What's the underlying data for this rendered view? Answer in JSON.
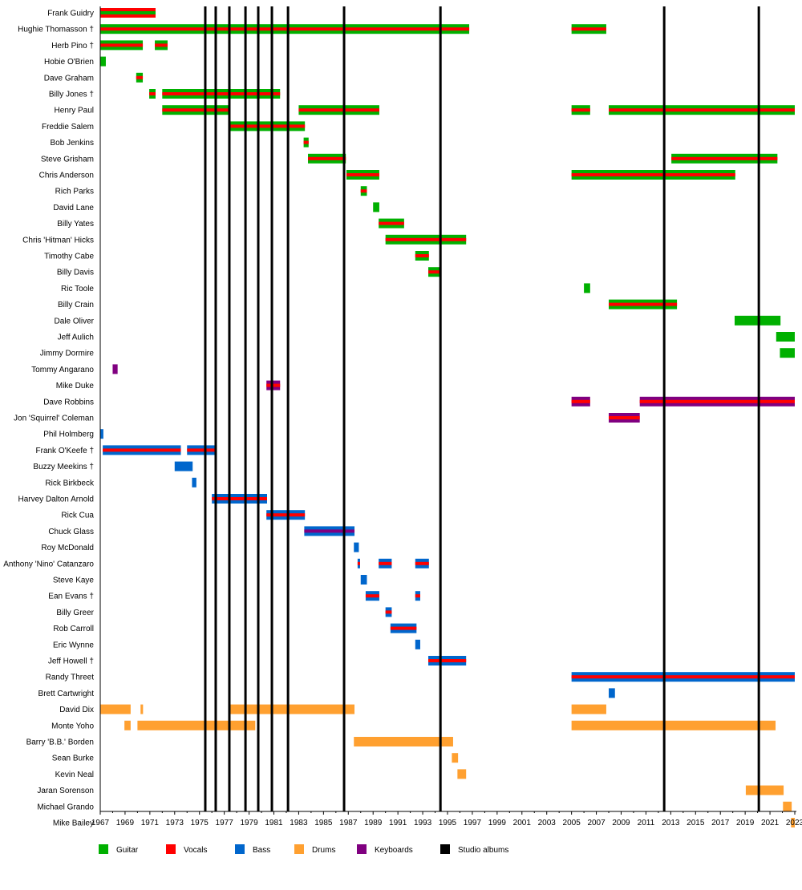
{
  "chart_data": {
    "type": "timeline",
    "xlim": [
      1967,
      2023
    ],
    "x_ticks": [
      1967,
      1969,
      1971,
      1973,
      1975,
      1977,
      1979,
      1981,
      1983,
      1985,
      1987,
      1989,
      1991,
      1993,
      1995,
      1997,
      1999,
      2001,
      2003,
      2005,
      2007,
      2009,
      2011,
      2013,
      2015,
      2017,
      2019,
      2021,
      2023
    ],
    "colors": {
      "Guitar": "#00b000",
      "Vocals": "#ff0000",
      "Bass": "#0066cc",
      "Drums": "#ffa030",
      "Keyboards": "#800080",
      "Studio albums": "#000000"
    },
    "legend": [
      "Guitar",
      "Vocals",
      "Bass",
      "Drums",
      "Keyboards",
      "Studio albums"
    ],
    "legend_placement": "bottom",
    "studio_albums": [
      1975.47,
      1976.31,
      1977.41,
      1978.71,
      1979.74,
      1980.84,
      1982.14,
      1986.66,
      1994.43,
      2012.47,
      2020.1
    ],
    "members": [
      {
        "name": "Frank Guidry",
        "role": "Vocals",
        "secondary": "Guitar",
        "periods": [
          [
            1967,
            1971.46
          ]
        ]
      },
      {
        "name": "Hughie Thomasson †",
        "role": "Guitar",
        "secondary": "Vocals",
        "periods": [
          [
            1967,
            1996.75
          ],
          [
            2005,
            2007.8
          ]
        ]
      },
      {
        "name": "Herb Pino †",
        "role": "Guitar",
        "secondary": "Vocals",
        "periods": [
          [
            1967,
            1970.43
          ],
          [
            1971.4,
            1972.43
          ]
        ]
      },
      {
        "name": "Hobie O'Brien",
        "role": "Guitar",
        "periods": [
          [
            1967,
            1967.45
          ]
        ]
      },
      {
        "name": "Dave Graham",
        "role": "Guitar",
        "secondary": "Vocals",
        "periods": [
          [
            1969.9,
            1970.43
          ]
        ]
      },
      {
        "name": "Billy Jones †",
        "role": "Guitar",
        "secondary": "Vocals",
        "periods": [
          [
            1970.95,
            1971.46
          ],
          [
            1972,
            1981.5
          ]
        ]
      },
      {
        "name": "Henry Paul",
        "role": "Guitar",
        "secondary": "Vocals",
        "periods": [
          [
            1972,
            1977.4
          ],
          [
            1983,
            1989.5
          ],
          [
            2005,
            2006.5
          ],
          [
            2008,
            2023
          ]
        ]
      },
      {
        "name": "Freddie Salem",
        "role": "Guitar",
        "secondary": "Vocals",
        "periods": [
          [
            1977.4,
            1983.5
          ]
        ]
      },
      {
        "name": "Bob Jenkins",
        "role": "Guitar",
        "secondary": "Vocals",
        "periods": [
          [
            1983.4,
            1983.8
          ]
        ]
      },
      {
        "name": "Steve Grisham",
        "role": "Guitar",
        "secondary": "Vocals",
        "periods": [
          [
            1983.75,
            1986.8
          ],
          [
            2013.05,
            2021.6
          ]
        ]
      },
      {
        "name": "Chris Anderson",
        "role": "Guitar",
        "secondary": "Vocals",
        "periods": [
          [
            1986.85,
            1989.5
          ],
          [
            2005,
            2018.2
          ]
        ]
      },
      {
        "name": "Rich Parks",
        "role": "Guitar",
        "secondary": "Vocals",
        "periods": [
          [
            1988,
            1988.5
          ]
        ]
      },
      {
        "name": "David Lane",
        "role": "Guitar",
        "periods": [
          [
            1989,
            1989.5
          ]
        ]
      },
      {
        "name": "Billy Yates",
        "role": "Guitar",
        "secondary": "Vocals",
        "periods": [
          [
            1989.45,
            1991.5
          ]
        ]
      },
      {
        "name": "Chris 'Hitman' Hicks",
        "role": "Guitar",
        "secondary": "Vocals",
        "periods": [
          [
            1990,
            1996.5
          ]
        ]
      },
      {
        "name": "Timothy Cabe",
        "role": "Guitar",
        "secondary": "Vocals",
        "periods": [
          [
            1992.4,
            1993.5
          ]
        ]
      },
      {
        "name": "Billy Davis",
        "role": "Guitar",
        "secondary": "Vocals",
        "periods": [
          [
            1993.45,
            1994.5
          ]
        ]
      },
      {
        "name": "Ric Toole",
        "role": "Guitar",
        "periods": [
          [
            2006,
            2006.5
          ]
        ]
      },
      {
        "name": "Billy Crain",
        "role": "Guitar",
        "secondary": "Vocals",
        "periods": [
          [
            2008,
            2013.5
          ]
        ]
      },
      {
        "name": "Dale Oliver",
        "role": "Guitar",
        "periods": [
          [
            2018.15,
            2021.85
          ]
        ]
      },
      {
        "name": "Jeff Aulich",
        "role": "Guitar",
        "periods": [
          [
            2021.5,
            2023
          ]
        ]
      },
      {
        "name": "Jimmy Dormire",
        "role": "Guitar",
        "periods": [
          [
            2021.8,
            2023
          ]
        ]
      },
      {
        "name": "Tommy Angarano",
        "role": "Keyboards",
        "periods": [
          [
            1968,
            1968.4
          ]
        ]
      },
      {
        "name": "Mike Duke",
        "role": "Keyboards",
        "secondary": "Vocals",
        "periods": [
          [
            1980.4,
            1981.5
          ]
        ]
      },
      {
        "name": "Dave Robbins",
        "role": "Keyboards",
        "secondary": "Vocals",
        "periods": [
          [
            2005,
            2006.5
          ],
          [
            2010.5,
            2023
          ]
        ]
      },
      {
        "name": "Jon 'Squirrel' Coleman",
        "role": "Keyboards",
        "secondary": "Vocals",
        "periods": [
          [
            2008,
            2010.5
          ]
        ]
      },
      {
        "name": "Phil Holmberg",
        "role": "Bass",
        "periods": [
          [
            1967,
            1967.25
          ]
        ]
      },
      {
        "name": "Frank O'Keefe †",
        "role": "Bass",
        "secondary": "Vocals",
        "periods": [
          [
            1967.2,
            1973.5
          ],
          [
            1974,
            1976.4
          ]
        ]
      },
      {
        "name": "Buzzy Meekins †",
        "role": "Bass",
        "periods": [
          [
            1973,
            1974.45
          ]
        ]
      },
      {
        "name": "Rick Birkbeck",
        "role": "Bass",
        "periods": [
          [
            1974.4,
            1974.75
          ]
        ]
      },
      {
        "name": "Harvey Dalton Arnold",
        "role": "Bass",
        "secondary": "Vocals",
        "periods": [
          [
            1976,
            1980.45
          ]
        ]
      },
      {
        "name": "Rick Cua",
        "role": "Bass",
        "secondary": "Vocals",
        "periods": [
          [
            1980.4,
            1983.5
          ]
        ]
      },
      {
        "name": "Chuck Glass",
        "role": "Bass",
        "secondary": "Keyboards",
        "periods": [
          [
            1983.45,
            1987.5
          ]
        ]
      },
      {
        "name": "Roy McDonald",
        "role": "Bass",
        "periods": [
          [
            1987.45,
            1987.85
          ]
        ]
      },
      {
        "name": "Anthony 'Nino' Catanzaro",
        "role": "Bass",
        "secondary": "Vocals",
        "periods": [
          [
            1987.75,
            1987.95
          ],
          [
            1989.45,
            1990.5
          ],
          [
            1992.4,
            1993.5
          ]
        ]
      },
      {
        "name": "Steve Kaye",
        "role": "Bass",
        "periods": [
          [
            1988,
            1988.5
          ]
        ]
      },
      {
        "name": "Ean Evans †",
        "role": "Bass",
        "secondary": "Vocals",
        "periods": [
          [
            1988.4,
            1989.5
          ],
          [
            1992.4,
            1992.8
          ]
        ]
      },
      {
        "name": "Billy Greer",
        "role": "Bass",
        "secondary": "Vocals",
        "periods": [
          [
            1990,
            1990.5
          ]
        ]
      },
      {
        "name": "Rob Carroll",
        "role": "Bass",
        "secondary": "Vocals",
        "periods": [
          [
            1990.4,
            1992.5
          ]
        ]
      },
      {
        "name": "Eric Wynne",
        "role": "Bass",
        "periods": [
          [
            1992.4,
            1992.8
          ]
        ]
      },
      {
        "name": "Jeff Howell †",
        "role": "Bass",
        "secondary": "Vocals",
        "periods": [
          [
            1993.45,
            1996.5
          ]
        ]
      },
      {
        "name": "Randy Threet",
        "role": "Bass",
        "secondary": "Vocals",
        "periods": [
          [
            2005,
            2023
          ]
        ]
      },
      {
        "name": "Brett Cartwright",
        "role": "Bass",
        "periods": [
          [
            2008,
            2008.5
          ]
        ]
      },
      {
        "name": "David Dix",
        "role": "Drums",
        "periods": [
          [
            1967,
            1969.45
          ],
          [
            1970.25,
            1970.45
          ],
          [
            1977.4,
            1987.5
          ],
          [
            2005,
            2007.8
          ]
        ]
      },
      {
        "name": "Monte Yoho",
        "role": "Drums",
        "periods": [
          [
            1968.95,
            1969.45
          ],
          [
            1970,
            1979.5
          ],
          [
            2005,
            2021.45
          ]
        ]
      },
      {
        "name": "Barry 'B.B.' Borden",
        "role": "Drums",
        "periods": [
          [
            1987.45,
            1995.45
          ]
        ]
      },
      {
        "name": "Sean Burke",
        "role": "Drums",
        "periods": [
          [
            1995.35,
            1995.85
          ]
        ]
      },
      {
        "name": "Kevin Neal",
        "role": "Drums",
        "periods": [
          [
            1995.8,
            1996.5
          ]
        ]
      },
      {
        "name": "Jaran Sorenson",
        "role": "Drums",
        "periods": [
          [
            2019.05,
            2022.1
          ]
        ]
      },
      {
        "name": "Michael Grando",
        "role": "Drums",
        "periods": [
          [
            2022.05,
            2022.75
          ]
        ]
      },
      {
        "name": "Mike Bailey",
        "role": "Drums",
        "periods": [
          [
            2022.7,
            2023
          ]
        ]
      }
    ]
  }
}
